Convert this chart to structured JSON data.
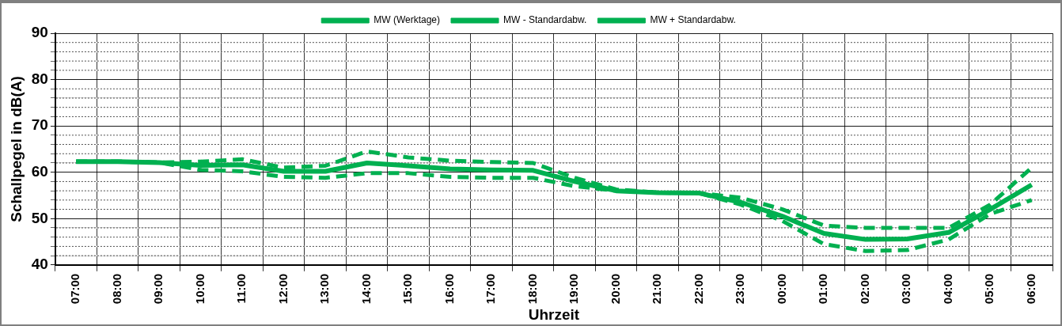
{
  "chart_data": {
    "type": "line",
    "xlabel": "Uhrzeit",
    "ylabel": "Schallpegel in dB(A)",
    "categories": [
      "07:00",
      "08:00",
      "09:00",
      "10:00",
      "11:00",
      "12:00",
      "13:00",
      "14:00",
      "15:00",
      "16:00",
      "17:00",
      "18:00",
      "19:00",
      "20:00",
      "21:00",
      "22:00",
      "23:00",
      "00:00",
      "01:00",
      "02:00",
      "03:00",
      "04:00",
      "05:00",
      "06:00"
    ],
    "series": [
      {
        "name": "MW (Werktage)",
        "color": "#00b050",
        "line_style": "solid",
        "values": [
          62.3,
          62.3,
          62.1,
          61.5,
          61.6,
          60.2,
          60.2,
          62,
          61.4,
          60.7,
          60.5,
          60.4,
          58,
          56,
          55.6,
          55.5,
          53.5,
          50.5,
          46.8,
          45.5,
          45.6,
          47,
          52,
          57.3
        ]
      },
      {
        "name": "MW - Standardabw.",
        "color": "#00b050",
        "line_style": "dashed",
        "values": [
          62.3,
          62.3,
          62.1,
          60.5,
          60.2,
          59,
          58.8,
          59.8,
          59.8,
          59,
          58.8,
          58.8,
          57,
          56,
          55.6,
          55.5,
          53,
          49.5,
          44.5,
          43,
          43.2,
          45.5,
          51,
          54
        ]
      },
      {
        "name": "MW + Standardabw.",
        "color": "#00b050",
        "line_style": "dashed",
        "values": [
          62.3,
          62.3,
          62.1,
          62.3,
          62.8,
          61,
          61.4,
          64.5,
          63.2,
          62.5,
          62.2,
          62,
          58.8,
          56.3,
          55.6,
          55.5,
          54.5,
          52,
          48.5,
          48,
          48,
          48,
          53,
          61
        ]
      }
    ],
    "ylim": [
      40,
      90
    ],
    "yticks": [
      40,
      {
        "value": 42,
        "label": null
      },
      {
        "value": 44,
        "label": null
      },
      {
        "value": 46,
        "label": null
      },
      {
        "value": 48,
        "label": null
      },
      50,
      {
        "value": 52,
        "label": null
      },
      {
        "value": 54,
        "label": null
      },
      {
        "value": 56,
        "label": null
      },
      {
        "value": 58,
        "label": null
      },
      60,
      {
        "value": 62,
        "label": null
      },
      {
        "value": 64,
        "label": null
      },
      {
        "value": 66,
        "label": null
      },
      {
        "value": 68,
        "label": null
      },
      70,
      {
        "value": 72,
        "label": null
      },
      {
        "value": 74,
        "label": null
      },
      {
        "value": 76,
        "label": null
      },
      {
        "value": 78,
        "label": null
      },
      80,
      {
        "value": 82,
        "label": null
      },
      {
        "value": 84,
        "label": null
      },
      {
        "value": 86,
        "label": null
      },
      {
        "value": 88,
        "label": null
      },
      90
    ],
    "grid": true,
    "legend": "top"
  }
}
